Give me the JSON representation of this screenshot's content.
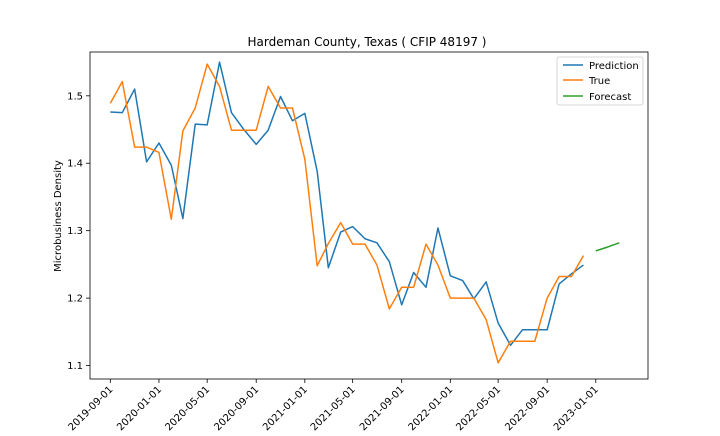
{
  "chart_data": {
    "type": "line",
    "title": "Hardeman County, Texas ( CFIP 48197 )",
    "xlabel": "",
    "ylabel": "Microbusiness Density",
    "ylim": [
      1.08,
      1.565
    ],
    "xlim": [
      "2019-07-12",
      "2023-05-12"
    ],
    "x_ticks": [
      "2019-09-01",
      "2020-01-01",
      "2020-05-01",
      "2020-09-01",
      "2021-01-01",
      "2021-05-01",
      "2021-09-01",
      "2022-01-01",
      "2022-05-01",
      "2022-09-01",
      "2023-01-01"
    ],
    "y_ticks": [
      1.1,
      1.2,
      1.3,
      1.4,
      1.5
    ],
    "legend_position": "top-right",
    "grid": false,
    "series": [
      {
        "name": "Prediction",
        "color": "#1f77b4",
        "points": [
          [
            "2019-09-01",
            1.476
          ],
          [
            "2019-10-01",
            1.475
          ],
          [
            "2019-11-01",
            1.51
          ],
          [
            "2019-12-01",
            1.402
          ],
          [
            "2020-01-01",
            1.43
          ],
          [
            "2020-02-01",
            1.397
          ],
          [
            "2020-03-01",
            1.318
          ],
          [
            "2020-04-01",
            1.458
          ],
          [
            "2020-05-01",
            1.457
          ],
          [
            "2020-06-01",
            1.55
          ],
          [
            "2020-07-01",
            1.475
          ],
          [
            "2020-08-01",
            1.45
          ],
          [
            "2020-09-01",
            1.428
          ],
          [
            "2020-10-01",
            1.449
          ],
          [
            "2020-11-01",
            1.499
          ],
          [
            "2020-12-01",
            1.463
          ],
          [
            "2021-01-01",
            1.474
          ],
          [
            "2021-02-01",
            1.388
          ],
          [
            "2021-03-01",
            1.245
          ],
          [
            "2021-04-01",
            1.298
          ],
          [
            "2021-05-01",
            1.306
          ],
          [
            "2021-06-01",
            1.288
          ],
          [
            "2021-07-01",
            1.282
          ],
          [
            "2021-08-01",
            1.254
          ],
          [
            "2021-09-01",
            1.19
          ],
          [
            "2021-10-01",
            1.238
          ],
          [
            "2021-11-01",
            1.216
          ],
          [
            "2021-12-01",
            1.304
          ],
          [
            "2022-01-01",
            1.233
          ],
          [
            "2022-02-01",
            1.226
          ],
          [
            "2022-03-01",
            1.199
          ],
          [
            "2022-04-01",
            1.224
          ],
          [
            "2022-05-01",
            1.163
          ],
          [
            "2022-06-01",
            1.13
          ],
          [
            "2022-07-01",
            1.153
          ],
          [
            "2022-08-01",
            1.153
          ],
          [
            "2022-09-01",
            1.153
          ],
          [
            "2022-10-01",
            1.221
          ],
          [
            "2022-11-01",
            1.236
          ],
          [
            "2022-12-01",
            1.249
          ]
        ]
      },
      {
        "name": "True",
        "color": "#ff7f0e",
        "points": [
          [
            "2019-09-01",
            1.489
          ],
          [
            "2019-10-01",
            1.521
          ],
          [
            "2019-11-01",
            1.424
          ],
          [
            "2019-12-01",
            1.424
          ],
          [
            "2020-01-01",
            1.416
          ],
          [
            "2020-02-01",
            1.317
          ],
          [
            "2020-03-01",
            1.448
          ],
          [
            "2020-04-01",
            1.482
          ],
          [
            "2020-05-01",
            1.547
          ],
          [
            "2020-06-01",
            1.514
          ],
          [
            "2020-07-01",
            1.449
          ],
          [
            "2020-08-01",
            1.449
          ],
          [
            "2020-09-01",
            1.449
          ],
          [
            "2020-10-01",
            1.514
          ],
          [
            "2020-11-01",
            1.482
          ],
          [
            "2020-12-01",
            1.482
          ],
          [
            "2021-01-01",
            1.406
          ],
          [
            "2021-02-01",
            1.248
          ],
          [
            "2021-03-01",
            1.281
          ],
          [
            "2021-04-01",
            1.312
          ],
          [
            "2021-05-01",
            1.28
          ],
          [
            "2021-06-01",
            1.28
          ],
          [
            "2021-07-01",
            1.249
          ],
          [
            "2021-08-01",
            1.184
          ],
          [
            "2021-09-01",
            1.216
          ],
          [
            "2021-10-01",
            1.216
          ],
          [
            "2021-11-01",
            1.28
          ],
          [
            "2021-12-01",
            1.249
          ],
          [
            "2022-01-01",
            1.2
          ],
          [
            "2022-02-01",
            1.2
          ],
          [
            "2022-03-01",
            1.2
          ],
          [
            "2022-04-01",
            1.168
          ],
          [
            "2022-05-01",
            1.104
          ],
          [
            "2022-06-01",
            1.136
          ],
          [
            "2022-07-01",
            1.136
          ],
          [
            "2022-08-01",
            1.136
          ],
          [
            "2022-09-01",
            1.2
          ],
          [
            "2022-10-01",
            1.232
          ],
          [
            "2022-11-01",
            1.232
          ],
          [
            "2022-12-01",
            1.263
          ]
        ]
      },
      {
        "name": "Forecast",
        "color": "#2ca02c",
        "points": [
          [
            "2023-01-01",
            1.27
          ],
          [
            "2023-02-01",
            1.276
          ],
          [
            "2023-03-01",
            1.282
          ]
        ]
      }
    ]
  }
}
